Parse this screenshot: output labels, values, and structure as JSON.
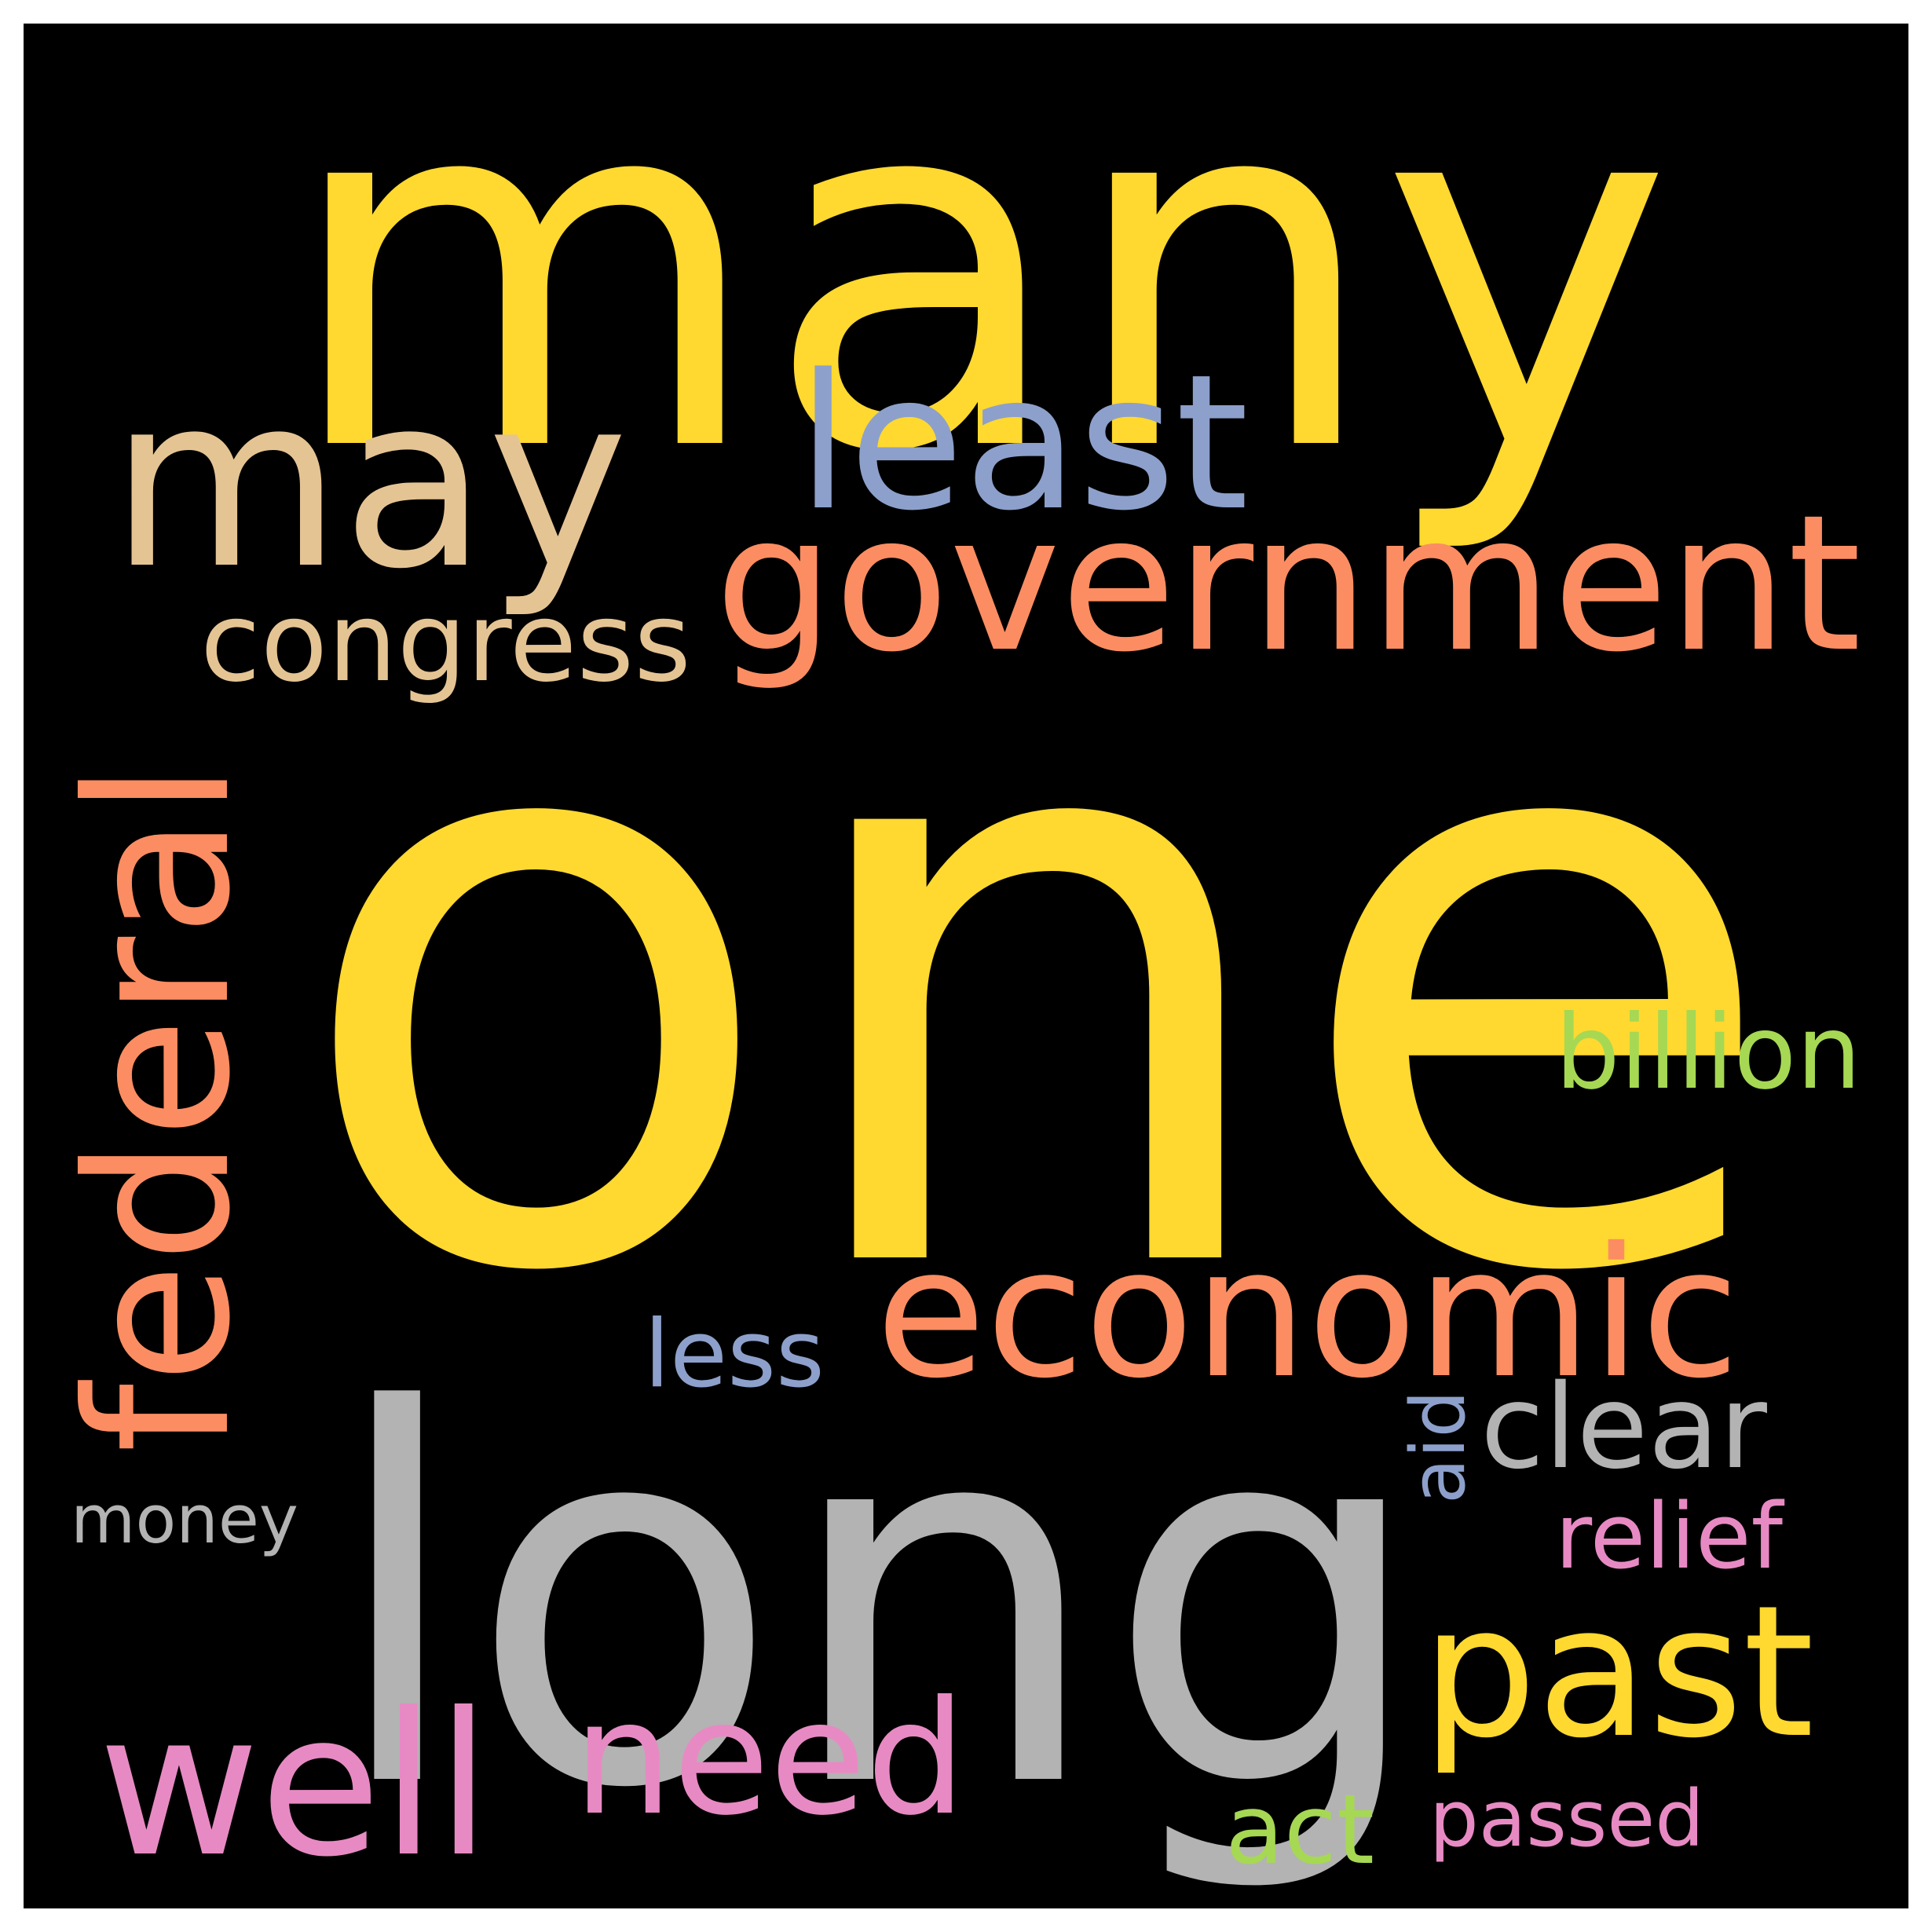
{
  "words": [
    {
      "text": "one",
      "color": "#ffd92f"
    },
    {
      "text": "many",
      "color": "#ffd92f"
    },
    {
      "text": "long",
      "color": "#b3b3b3"
    },
    {
      "text": "may",
      "color": "#e5c494"
    },
    {
      "text": "government",
      "color": "#fc8d62"
    },
    {
      "text": "economic",
      "color": "#fc8d62"
    },
    {
      "text": "federal",
      "color": "#fc8d62"
    },
    {
      "text": "least",
      "color": "#8da0cb"
    },
    {
      "text": "past",
      "color": "#ffd92f"
    },
    {
      "text": "need",
      "color": "#e78ac3"
    },
    {
      "text": "well",
      "color": "#e78ac3"
    },
    {
      "text": "congress",
      "color": "#e5c494"
    },
    {
      "text": "clear",
      "color": "#b3b3b3"
    },
    {
      "text": "billion",
      "color": "#a6d854"
    },
    {
      "text": "less",
      "color": "#8da0cb"
    },
    {
      "text": "money",
      "color": "#b3b3b3"
    },
    {
      "text": "relief",
      "color": "#e78ac3"
    },
    {
      "text": "passed",
      "color": "#e78ac3"
    },
    {
      "text": "act",
      "color": "#a6d854"
    },
    {
      "text": "aid",
      "color": "#8da0cb"
    }
  ]
}
